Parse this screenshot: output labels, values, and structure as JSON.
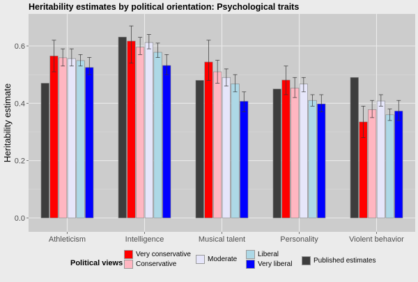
{
  "chart_data": {
    "type": "bar",
    "title": "Heritability estimates by political orientation: Psychological traits",
    "xlabel": "",
    "ylabel": "Heritability estimate",
    "ylim": [
      -0.03,
      0.68
    ],
    "yticks": [
      0.0,
      0.2,
      0.4,
      0.6
    ],
    "ytick_labels": [
      "0.0",
      "0.2",
      "0.4",
      "0.6"
    ],
    "grid": true,
    "categories": [
      "Athleticism",
      "Intelligence",
      "Musical talent",
      "Personality",
      "Violent behavior"
    ],
    "series": [
      {
        "name": "Published estimates",
        "color": "#3d3d3d",
        "values": [
          0.47,
          0.631,
          0.48,
          0.45,
          0.49
        ],
        "err_low": null,
        "err_high": null
      },
      {
        "name": "Very conservative",
        "color": "#ff0000",
        "values": [
          0.565,
          0.617,
          0.544,
          0.481,
          0.335
        ],
        "err_low": [
          0.51,
          0.54,
          0.48,
          0.43,
          0.28
        ],
        "err_high": [
          0.62,
          0.67,
          0.62,
          0.53,
          0.39
        ]
      },
      {
        "name": "Conservative",
        "color": "#ffb6c1",
        "values": [
          0.559,
          0.596,
          0.51,
          0.453,
          0.378
        ],
        "err_low": [
          0.53,
          0.57,
          0.47,
          0.42,
          0.35
        ],
        "err_high": [
          0.59,
          0.63,
          0.55,
          0.49,
          0.41
        ]
      },
      {
        "name": "Moderate",
        "color": "#e6e6fa",
        "values": [
          0.556,
          0.612,
          0.49,
          0.467,
          0.408
        ],
        "err_low": [
          0.53,
          0.59,
          0.46,
          0.44,
          0.39
        ],
        "err_high": [
          0.59,
          0.64,
          0.52,
          0.49,
          0.43
        ]
      },
      {
        "name": "Liberal",
        "color": "#add8e6",
        "values": [
          0.549,
          0.578,
          0.468,
          0.41,
          0.36
        ],
        "err_low": [
          0.53,
          0.56,
          0.44,
          0.39,
          0.34
        ],
        "err_high": [
          0.57,
          0.61,
          0.5,
          0.43,
          0.38
        ]
      },
      {
        "name": "Very liberal",
        "color": "#0000ff",
        "values": [
          0.525,
          0.532,
          0.407,
          0.398,
          0.373
        ],
        "err_low": [
          0.5,
          0.5,
          0.37,
          0.37,
          0.34
        ],
        "err_high": [
          0.56,
          0.57,
          0.44,
          0.43,
          0.41
        ]
      }
    ],
    "legend": {
      "title": "Political views",
      "placement": "bottom",
      "entries": [
        "Very conservative",
        "Conservative",
        "Moderate",
        "Liberal",
        "Very liberal",
        "Published estimates"
      ]
    }
  }
}
